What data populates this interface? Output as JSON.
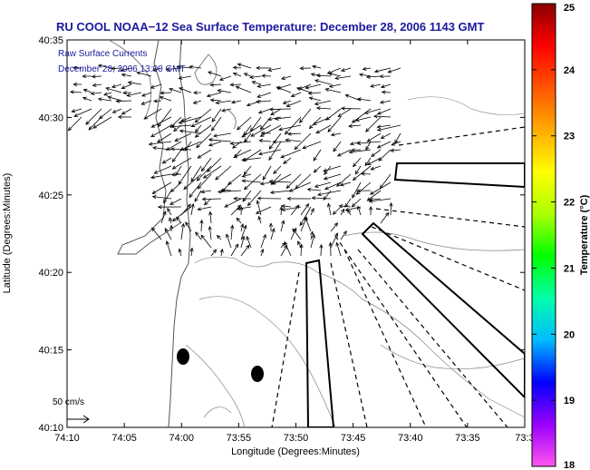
{
  "title": "RU COOL  NOAA−12  Sea Surface Temperature:  December 28, 2006 1143 GMT",
  "overlay_label": "Raw Surface Currents",
  "overlay_time": "December 28, 2006 13:00 GMT",
  "scale_label": "50 cm/s",
  "x_axis": {
    "label": "Longitude (Degrees:Minutes)",
    "ticks": [
      "74:10",
      "74:05",
      "74:00",
      "73:55",
      "73:50",
      "73:45",
      "73:40",
      "73:35",
      "73:3"
    ]
  },
  "y_axis": {
    "label": "Latitude (Degrees:Minutes)",
    "ticks": [
      "40:35",
      "40:30",
      "40:25",
      "40:20",
      "40:15",
      "40:10"
    ]
  },
  "colorbar": {
    "label": "Temperature (°C)",
    "ticks": [
      "25",
      "24",
      "23",
      "22",
      "21",
      "20",
      "19",
      "18"
    ],
    "min": 18,
    "max": 25,
    "colors": [
      "#ff55ee",
      "#9900ff",
      "#0000ff",
      "#00bbff",
      "#00ffaa",
      "#00ff00",
      "#aaff00",
      "#ffff00",
      "#ffaa00",
      "#ff5500",
      "#ff0000",
      "#8a0000"
    ]
  }
}
